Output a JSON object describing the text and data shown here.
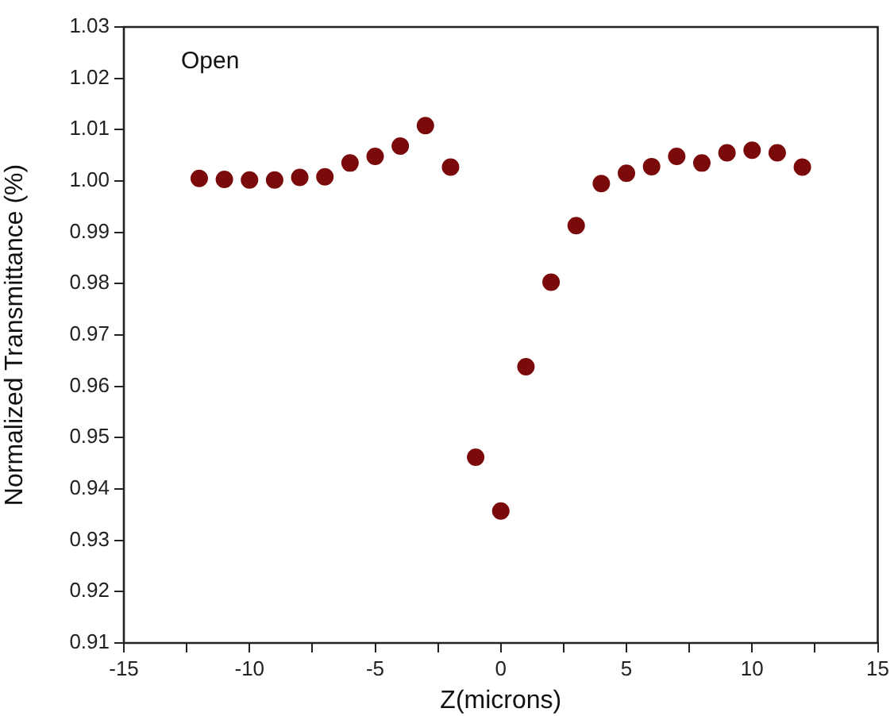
{
  "chart_data": {
    "type": "scatter",
    "xlabel": "Z(microns)",
    "ylabel": "Normalized Transmittance (%)",
    "annotations": [
      "Open"
    ],
    "x": [
      -12,
      -11,
      -10,
      -9,
      -8,
      -7,
      -6,
      -5,
      -4,
      -3,
      -2,
      -1,
      0,
      1,
      2,
      3,
      4,
      5,
      6,
      7,
      8,
      9,
      10,
      11,
      12
    ],
    "series": [
      {
        "color": "#7b0a0a",
        "values": [
          1.0005,
          1.0003,
          1.0002,
          1.0002,
          1.0007,
          1.0008,
          1.0035,
          1.0048,
          1.0068,
          1.0108,
          1.0027,
          0.9462,
          0.9357,
          0.9638,
          0.9803,
          0.9913,
          0.9995,
          1.0015,
          1.0028,
          1.0048,
          1.0035,
          1.0055,
          1.006,
          1.0055,
          1.0027
        ]
      }
    ],
    "xlim": [
      -15,
      15
    ],
    "xticks": [
      -15,
      {
        "value": -12.5,
        "label": null
      },
      -10,
      {
        "value": -7.5,
        "label": null
      },
      -5,
      {
        "value": -2.5,
        "label": null
      },
      0,
      {
        "value": 2.5,
        "label": null
      },
      5,
      {
        "value": 7.5,
        "label": null
      },
      10,
      {
        "value": 12.5,
        "label": null
      },
      15
    ],
    "ylim": [
      0.91,
      1.03
    ],
    "yticks": [
      {
        "value": 0.91,
        "label": "0.91"
      },
      {
        "value": 0.92,
        "label": "0.92"
      },
      {
        "value": 0.93,
        "label": "0.93"
      },
      {
        "value": 0.94,
        "label": "0.94"
      },
      {
        "value": 0.95,
        "label": "0.95"
      },
      {
        "value": 0.96,
        "label": "0.96"
      },
      {
        "value": 0.97,
        "label": "0.97"
      },
      {
        "value": 0.98,
        "label": "0.98"
      },
      {
        "value": 0.99,
        "label": "0.99"
      },
      {
        "value": 1.0,
        "label": "1.00"
      },
      {
        "value": 1.01,
        "label": "1.01"
      },
      {
        "value": 1.02,
        "label": "1.02"
      },
      {
        "value": 1.03,
        "label": "1.03"
      }
    ],
    "grid": false,
    "legend": false,
    "marker": "circle"
  }
}
